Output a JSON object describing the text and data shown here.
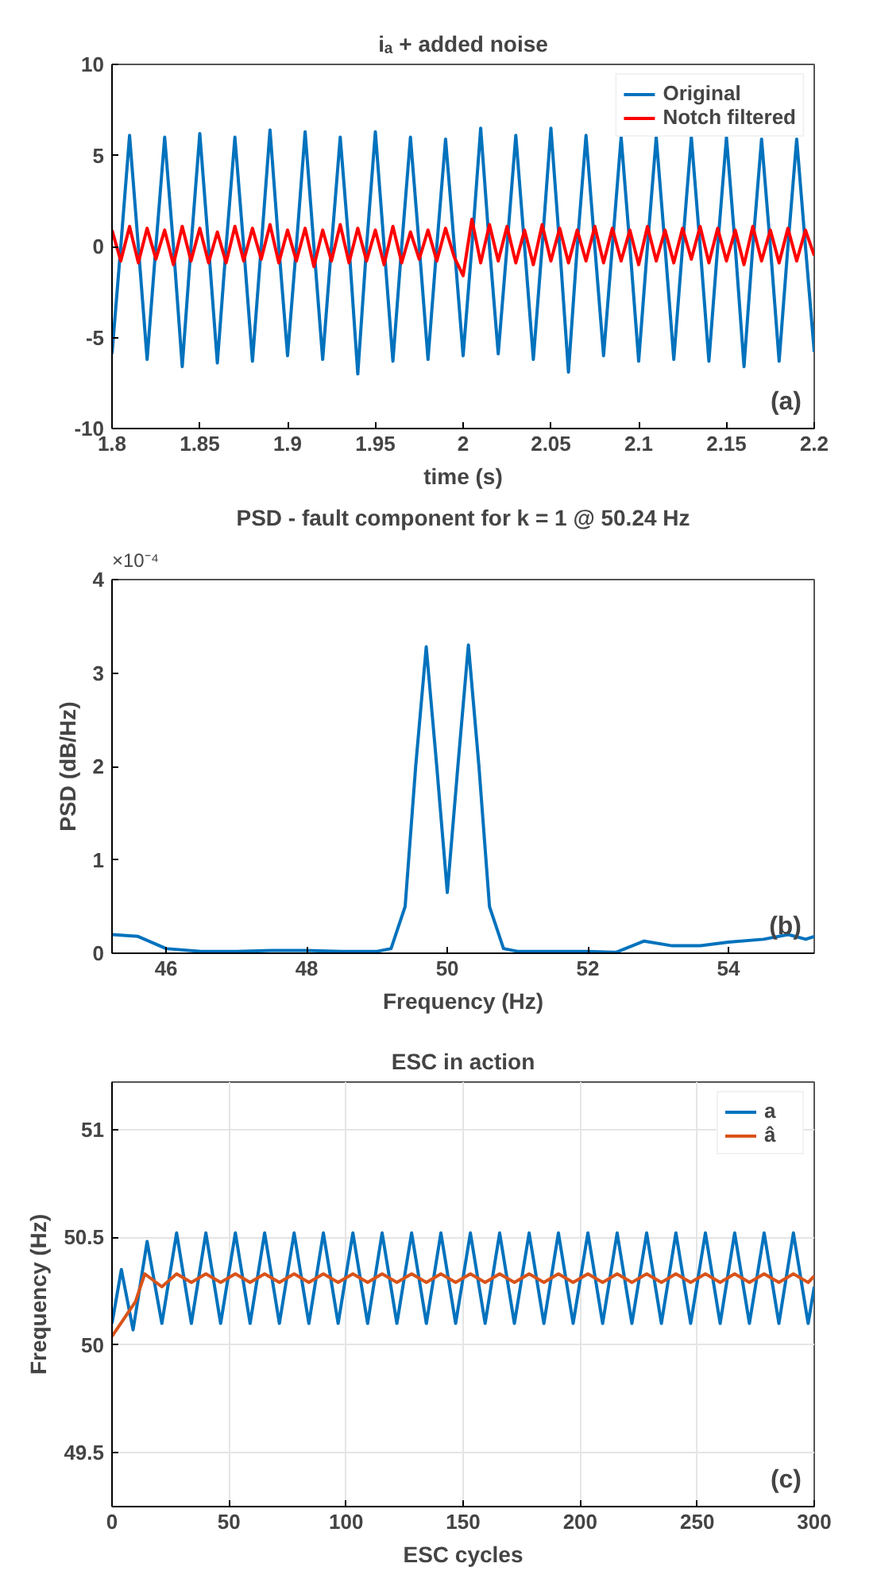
{
  "chart_data": [
    {
      "type": "line",
      "title": "iₐ + added noise",
      "xlabel": "time (s)",
      "xlim": [
        1.8,
        2.2
      ],
      "ylim": [
        -10,
        10
      ],
      "xticks": [
        1.8,
        1.85,
        1.9,
        1.95,
        2,
        2.05,
        2.1,
        2.15,
        2.2
      ],
      "yticks": [
        -10,
        -5,
        0,
        5,
        10
      ],
      "grid": false,
      "legend": "top right",
      "annotations": [
        "(a)"
      ],
      "x": [
        1.8,
        1.805,
        1.81,
        1.815,
        1.82,
        1.825,
        1.83,
        1.835,
        1.84,
        1.845,
        1.85,
        1.855,
        1.86,
        1.865,
        1.87,
        1.875,
        1.88,
        1.885,
        1.89,
        1.895,
        1.9,
        1.905,
        1.91,
        1.915,
        1.92,
        1.925,
        1.93,
        1.935,
        1.94,
        1.945,
        1.95,
        1.955,
        1.96,
        1.965,
        1.97,
        1.975,
        1.98,
        1.985,
        1.99,
        1.995,
        2.0,
        2.005,
        2.01,
        2.015,
        2.02,
        2.025,
        2.03,
        2.035,
        2.04,
        2.045,
        2.05,
        2.055,
        2.06,
        2.065,
        2.07,
        2.075,
        2.08,
        2.085,
        2.09,
        2.095,
        2.1,
        2.105,
        2.11,
        2.115,
        2.12,
        2.125,
        2.13,
        2.135,
        2.14,
        2.145,
        2.15,
        2.155,
        2.16,
        2.165,
        2.17,
        2.175,
        2.18,
        2.185,
        2.19,
        2.195,
        2.2
      ],
      "series": [
        {
          "name": "Original",
          "color": "#0072bd",
          "values": [
            -5.9,
            0,
            6.1,
            0,
            -6.2,
            0,
            6.0,
            0,
            -6.6,
            0,
            6.2,
            0,
            -6.4,
            0,
            6.0,
            0,
            -6.3,
            0,
            6.4,
            0,
            -6.0,
            0,
            6.3,
            0,
            -6.2,
            0,
            6.0,
            0,
            -7.0,
            0,
            6.3,
            0,
            -6.3,
            0,
            6.0,
            0,
            -6.2,
            0,
            5.9,
            0,
            -6.0,
            0,
            6.5,
            0,
            -5.9,
            0,
            6.1,
            0,
            -6.2,
            0,
            6.5,
            0,
            -6.9,
            0,
            6.1,
            0,
            -6.0,
            0,
            6.0,
            0,
            -6.3,
            0,
            6.0,
            0,
            -6.2,
            0,
            6.0,
            0,
            -6.3,
            0,
            6.0,
            0,
            -6.6,
            0,
            5.9,
            0,
            -6.3,
            0,
            5.9,
            0,
            -5.8
          ]
        },
        {
          "name": "Notch filtered",
          "color": "#ff0000",
          "values": [
            0.9,
            -0.8,
            1.1,
            -0.9,
            1.0,
            -0.7,
            0.9,
            -1.0,
            1.1,
            -0.8,
            1.0,
            -0.9,
            0.8,
            -0.9,
            1.1,
            -0.8,
            1.0,
            -0.7,
            1.2,
            -0.9,
            0.9,
            -0.8,
            1.0,
            -1.1,
            0.9,
            -0.8,
            1.2,
            -0.9,
            1.0,
            -0.8,
            0.9,
            -1.0,
            1.1,
            -0.9,
            0.8,
            -0.7,
            0.9,
            -0.8,
            1.0,
            -0.6,
            -1.6,
            1.5,
            -0.9,
            1.2,
            -0.8,
            1.1,
            -0.9,
            0.9,
            -1.0,
            1.2,
            -0.8,
            1.0,
            -0.9,
            0.9,
            -0.8,
            1.1,
            -0.9,
            1.0,
            -0.8,
            0.9,
            -1.0,
            1.1,
            -0.8,
            0.9,
            -0.9,
            1.0,
            -0.7,
            1.1,
            -0.9,
            1.0,
            -0.8,
            0.9,
            -1.0,
            1.1,
            -0.8,
            0.9,
            -0.9,
            1.0,
            -0.8,
            0.9,
            -0.5
          ]
        }
      ]
    },
    {
      "type": "line",
      "title": "PSD - fault component for k = 1 @ 50.24 Hz",
      "xlabel": "Frequency (Hz)",
      "ylabel": "PSD (dB/Hz)",
      "xlim": [
        45.23,
        55.22
      ],
      "ylim": [
        0,
        4
      ],
      "xticks": [
        46,
        48,
        50,
        52,
        54
      ],
      "yticks": [
        0,
        1,
        2,
        3,
        4
      ],
      "grid": false,
      "annotations": [
        "×10⁻⁴",
        "(b)"
      ],
      "x": [
        45.23,
        45.6,
        46,
        46.5,
        47,
        47.5,
        48,
        48.5,
        49,
        49.2,
        49.4,
        49.55,
        49.7,
        49.85,
        50,
        50.15,
        50.3,
        50.45,
        50.6,
        50.8,
        51,
        51.5,
        52,
        52.4,
        52.8,
        53.2,
        53.6,
        54,
        54.5,
        54.85,
        55.1,
        55.22
      ],
      "series": [
        {
          "color": "#0072bd",
          "values": [
            0.2,
            0.18,
            0.05,
            0.02,
            0.02,
            0.03,
            0.03,
            0.02,
            0.02,
            0.05,
            0.5,
            2.0,
            3.28,
            2.0,
            0.65,
            2.0,
            3.3,
            2.0,
            0.5,
            0.05,
            0.02,
            0.02,
            0.02,
            0.01,
            0.13,
            0.08,
            0.08,
            0.12,
            0.15,
            0.2,
            0.15,
            0.18
          ]
        }
      ]
    },
    {
      "type": "line",
      "title": "ESC in action",
      "xlabel": "ESC cycles",
      "ylabel": "Frequency (Hz)",
      "xlim": [
        0,
        300
      ],
      "ylim": [
        49.25,
        51.22
      ],
      "xticks": [
        0,
        50,
        100,
        150,
        200,
        250,
        300
      ],
      "yticks": [
        49.5,
        50,
        50.5,
        51
      ],
      "grid": true,
      "legend": "top right",
      "annotations": [
        "(c)"
      ],
      "series": [
        {
          "name": "a",
          "color": "#0072bd",
          "x": [
            0,
            4,
            9,
            15,
            21.3,
            27.6,
            33.9,
            40.1,
            46.4,
            52.7,
            59,
            65.2,
            71.5,
            77.8,
            84.1,
            90.3,
            96.6,
            102.9,
            109.2,
            115.4,
            121.7,
            128,
            134.3,
            140.5,
            146.8,
            153.1,
            159.4,
            165.6,
            171.9,
            178.2,
            184.5,
            190.7,
            197,
            203.3,
            209.6,
            215.8,
            222.1,
            228.4,
            234.7,
            240.9,
            247.2,
            253.5,
            259.8,
            266,
            272.3,
            278.6,
            284.9,
            291.1,
            297.4,
            300
          ],
          "values": [
            50.1,
            50.35,
            50.07,
            50.48,
            50.1,
            50.52,
            50.1,
            50.52,
            50.1,
            50.52,
            50.1,
            50.52,
            50.1,
            50.52,
            50.1,
            50.52,
            50.1,
            50.52,
            50.1,
            50.52,
            50.1,
            50.52,
            50.1,
            50.52,
            50.1,
            50.52,
            50.1,
            50.52,
            50.1,
            50.52,
            50.1,
            50.52,
            50.1,
            50.52,
            50.1,
            50.52,
            50.1,
            50.52,
            50.1,
            50.52,
            50.1,
            50.52,
            50.1,
            50.52,
            50.1,
            50.52,
            50.1,
            50.52,
            50.1,
            50.27
          ]
        },
        {
          "name": "â",
          "color": "#d95319",
          "x": [
            0,
            5,
            10,
            14,
            21.3,
            27.6,
            33.9,
            40.1,
            46.4,
            52.7,
            59,
            65.2,
            71.5,
            77.8,
            84.1,
            90.3,
            96.6,
            102.9,
            109.2,
            115.4,
            121.7,
            128,
            134.3,
            140.5,
            146.8,
            153.1,
            159.4,
            165.6,
            171.9,
            178.2,
            184.5,
            190.7,
            197,
            203.3,
            209.6,
            215.8,
            222.1,
            228.4,
            234.7,
            240.9,
            247.2,
            253.5,
            259.8,
            266,
            272.3,
            278.6,
            284.9,
            291.1,
            297.4,
            300
          ],
          "values": [
            50.04,
            50.12,
            50.2,
            50.33,
            50.27,
            50.33,
            50.29,
            50.33,
            50.29,
            50.33,
            50.29,
            50.33,
            50.29,
            50.33,
            50.29,
            50.33,
            50.29,
            50.33,
            50.29,
            50.33,
            50.29,
            50.33,
            50.29,
            50.33,
            50.29,
            50.33,
            50.29,
            50.33,
            50.29,
            50.33,
            50.29,
            50.33,
            50.29,
            50.33,
            50.29,
            50.33,
            50.29,
            50.33,
            50.29,
            50.33,
            50.29,
            50.33,
            50.29,
            50.33,
            50.29,
            50.33,
            50.29,
            50.33,
            50.29,
            50.32
          ]
        }
      ]
    }
  ]
}
